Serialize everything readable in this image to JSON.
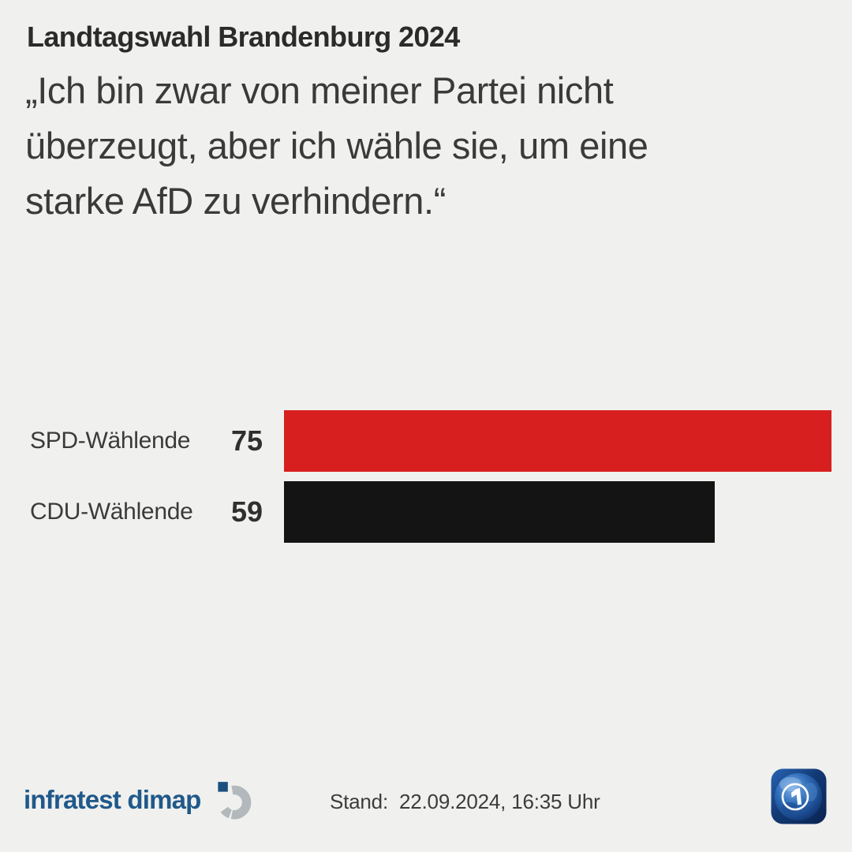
{
  "header": {
    "kicker": "Landtagswahl Brandenburg 2024",
    "quote_lines": {
      "l1": "„Ich bin zwar von meiner Partei nicht",
      "l2": "überzeugt, aber ich wähle sie, um eine",
      "l3": "starke AfD zu verhindern.“"
    }
  },
  "chart_data": {
    "type": "bar",
    "orientation": "horizontal",
    "title": "„Ich bin zwar von meiner Partei nicht überzeugt, aber ich wähle sie, um eine starke AfD zu verhindern.“",
    "categories": [
      "SPD-Wählende",
      "CDU-Wählende"
    ],
    "values": [
      75,
      59
    ],
    "value_labels": [
      "75",
      "59"
    ],
    "colors": [
      "#d71f1f",
      "#141414"
    ],
    "xlim": [
      0,
      75
    ],
    "grid": false,
    "legend": false
  },
  "footer": {
    "source_wordmark": "infratest dimap",
    "status_label": "Stand:  22.09.2024, 16:35 Uhr"
  },
  "icons": {
    "source_mark": "infratest-dimap-mark-icon",
    "broadcaster": "ard-tagesschau-globe-icon"
  },
  "colors": {
    "background": "#f0f0ee",
    "kicker_text": "#2b2b2b",
    "quote_text": "#3a3a3a",
    "bar_spd": "#d71f1f",
    "bar_cdu": "#141414",
    "source_blue": "#20598a",
    "mark_gray": "#b2b8bc",
    "mark_navy": "#1b4f7e"
  }
}
